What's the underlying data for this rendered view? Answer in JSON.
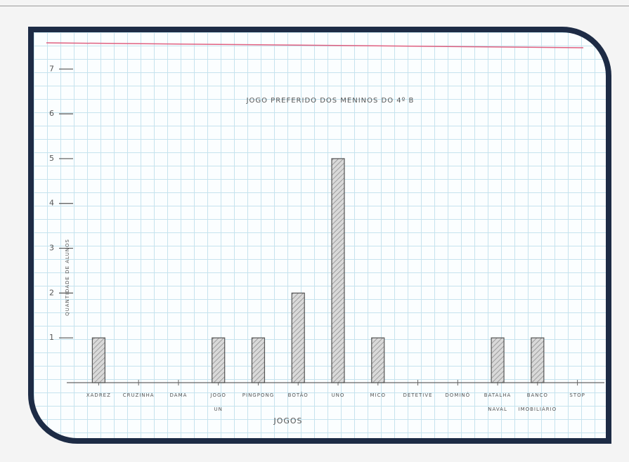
{
  "chart_data": {
    "type": "bar",
    "title": "JOGO PREFERIDO DOS MENINOS DO 4º B",
    "y_label": "QUANTIDADE DE ALUNOS",
    "x_label": "JOGOS",
    "categories": [
      "XADREZ",
      "CRUZINHA",
      "DAMA",
      "JOGO UN",
      "PINGPONG",
      "BOTÃO",
      "UNO",
      "MICO",
      "DETETIVE",
      "DOMINÓ",
      "BATALHA NAVAL",
      "BANCO IMOBILIÁRIO",
      "STOP"
    ],
    "values": [
      1,
      0,
      0,
      1,
      1,
      2,
      5,
      1,
      0,
      0,
      1,
      1,
      0
    ],
    "color": "#555555",
    "ylim": [
      0,
      7.6
    ],
    "yticks": [
      1,
      2,
      3,
      4,
      5,
      6,
      7
    ]
  }
}
